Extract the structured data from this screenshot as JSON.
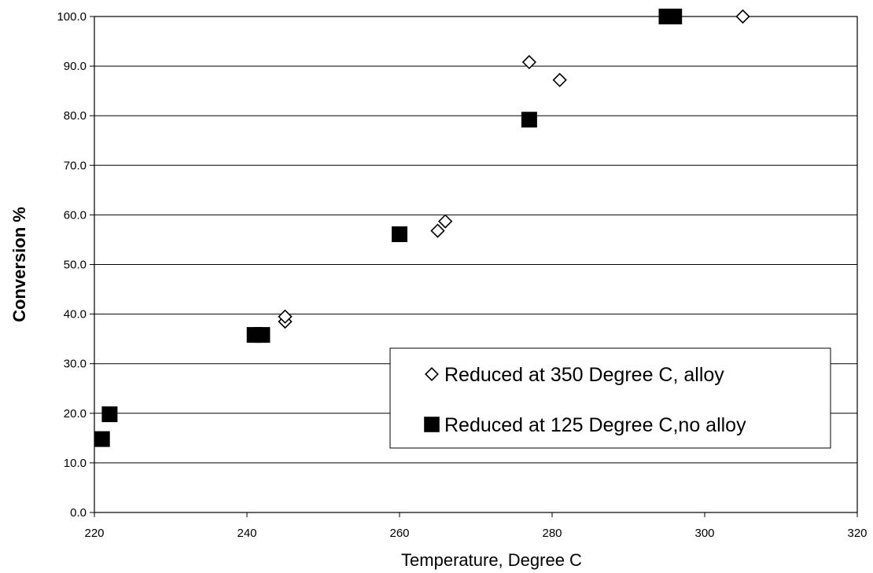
{
  "chart_data": {
    "type": "scatter",
    "title": "",
    "xlabel": "Temperature, Degree C",
    "ylabel": "Conversion %",
    "xlim": [
      220,
      320
    ],
    "ylim": [
      0,
      100
    ],
    "xticks": [
      "220",
      "240",
      "260",
      "280",
      "300",
      "320"
    ],
    "yticks": [
      "0.0",
      "10.0",
      "20.0",
      "30.0",
      "40.0",
      "50.0",
      "60.0",
      "70.0",
      "80.0",
      "90.0",
      "100.0"
    ],
    "grid": "horizontal",
    "legend_position": "lower-right",
    "series": [
      {
        "name": "Reduced at 350 Degree C, alloy",
        "marker": "open-diamond",
        "color": "#000000",
        "points": [
          {
            "x": 245,
            "y": 38.5
          },
          {
            "x": 245,
            "y": 39.5
          },
          {
            "x": 265,
            "y": 56.8
          },
          {
            "x": 266,
            "y": 58.7
          },
          {
            "x": 277,
            "y": 90.8
          },
          {
            "x": 281,
            "y": 87.2
          },
          {
            "x": 305,
            "y": 100.0
          }
        ]
      },
      {
        "name": "Reduced at 125 Degree C,no alloy",
        "marker": "filled-square",
        "color": "#000000",
        "points": [
          {
            "x": 221,
            "y": 14.8
          },
          {
            "x": 222,
            "y": 19.8
          },
          {
            "x": 241,
            "y": 35.8
          },
          {
            "x": 242,
            "y": 35.8
          },
          {
            "x": 260,
            "y": 56.1
          },
          {
            "x": 277,
            "y": 79.2
          },
          {
            "x": 295,
            "y": 100.0
          },
          {
            "x": 296,
            "y": 100.0
          }
        ]
      }
    ]
  }
}
